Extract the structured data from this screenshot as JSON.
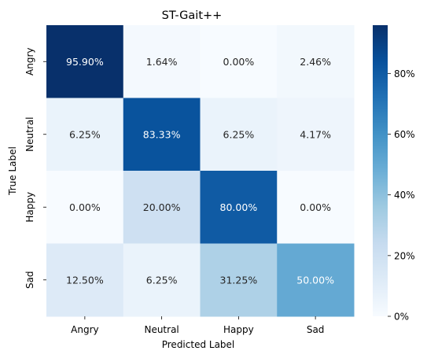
{
  "chart_data": {
    "type": "heatmap",
    "title": "ST-Gait++",
    "xlabel": "Predicted Label",
    "ylabel": "True Label",
    "x_categories": [
      "Angry",
      "Neutral",
      "Happy",
      "Sad"
    ],
    "y_categories": [
      "Angry",
      "Neutral",
      "Happy",
      "Sad"
    ],
    "values": [
      [
        95.9,
        1.64,
        0.0,
        2.46
      ],
      [
        6.25,
        83.33,
        6.25,
        4.17
      ],
      [
        0.0,
        20.0,
        80.0,
        0.0
      ],
      [
        12.5,
        6.25,
        31.25,
        50.0
      ]
    ],
    "cell_labels": [
      [
        "95.90%",
        "1.64%",
        "0.00%",
        "2.46%"
      ],
      [
        "6.25%",
        "83.33%",
        "6.25%",
        "4.17%"
      ],
      [
        "0.00%",
        "20.00%",
        "80.00%",
        "0.00%"
      ],
      [
        "12.50%",
        "6.25%",
        "31.25%",
        "50.00%"
      ]
    ],
    "colormap": "Blues",
    "colorbar": {
      "range": [
        0,
        95.9
      ],
      "ticks": [
        0,
        20,
        40,
        60,
        80
      ],
      "tick_labels": [
        "0%",
        "20%",
        "40%",
        "60%",
        "80%"
      ]
    },
    "colors": {
      "low": "#f7fbff",
      "high": "#08306b"
    }
  }
}
